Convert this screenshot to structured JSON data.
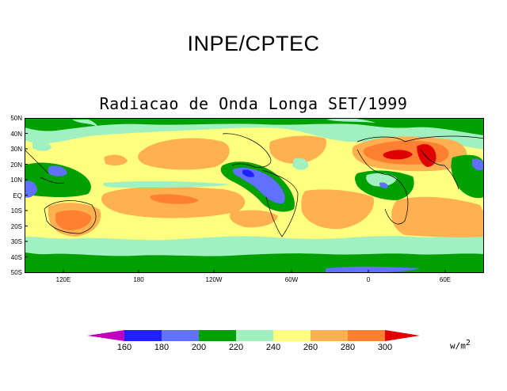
{
  "header": {
    "title": "INPE/CPTEC"
  },
  "map": {
    "title": "Radiacao de Onda Longa SET/1999",
    "lat_labels": [
      "50N",
      "40N",
      "30N",
      "20N",
      "10N",
      "EQ",
      "10S",
      "20S",
      "30S",
      "40S",
      "50S"
    ],
    "lon_labels": [
      "120E",
      "180",
      "120W",
      "60W",
      "0",
      "60E"
    ]
  },
  "colorbar": {
    "labels": [
      "160",
      "180",
      "200",
      "220",
      "240",
      "260",
      "280",
      "300"
    ],
    "colors": [
      "#c000c0",
      "#2020ff",
      "#6070ff",
      "#00a000",
      "#a0f0c0",
      "#ffff80",
      "#ffb050",
      "#ff8030",
      "#e00000"
    ],
    "units": "w/m",
    "units_power": "2"
  }
}
